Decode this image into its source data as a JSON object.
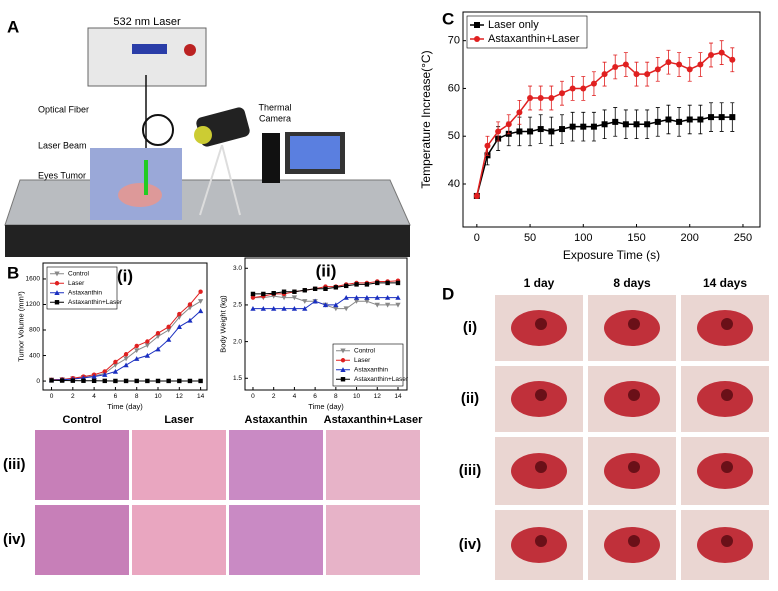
{
  "labels": {
    "panel_a": "A",
    "panel_b": "B",
    "panel_c": "C",
    "panel_d": "D",
    "laser_device": "532 nm Laser",
    "optical_fiber": "Optical Fiber",
    "laser_beam": "Laser Beam",
    "eyes_tumor": "Eyes Tumor",
    "thermal_camera": [
      "Thermal",
      "Camera"
    ]
  },
  "histology": {
    "columns": [
      "Control",
      "Laser",
      "Astaxanthin",
      "Astaxanthin+Laser"
    ],
    "rows": [
      "(iii)",
      "(iv)"
    ]
  },
  "photos": {
    "columns": [
      "1 day",
      "8 days",
      "14 days"
    ],
    "rows": [
      "(i)",
      "(ii)",
      "(iii)",
      "(iv)"
    ]
  },
  "chart_data": [
    {
      "type": "line",
      "xlabel": "Exposure Time (s)",
      "ylabel": "Temperature Increase(°C)",
      "legend": "upper left",
      "xlim": [
        -13,
        266
      ],
      "xticks": [
        0,
        50,
        100,
        150,
        200,
        250
      ],
      "ylim": [
        31,
        76
      ],
      "yticks": [
        40,
        50,
        60,
        70
      ],
      "x": [
        0,
        10,
        20,
        30,
        40,
        50,
        60,
        70,
        80,
        90,
        100,
        110,
        120,
        130,
        140,
        150,
        160,
        170,
        180,
        190,
        200,
        210,
        220,
        230,
        240
      ],
      "series": [
        {
          "name": "Laser only",
          "color": "#000000",
          "marker": "square",
          "values": [
            37.5,
            46,
            49.5,
            50.5,
            51,
            51,
            51.5,
            51,
            51.5,
            52,
            52,
            52,
            52.5,
            53,
            52.5,
            52.5,
            52.5,
            53,
            53.5,
            53,
            53.5,
            53.5,
            54,
            54,
            54
          ],
          "errors": [
            0.5,
            2,
            2.5,
            2.5,
            3,
            3,
            3,
            3,
            3,
            3,
            3,
            3,
            3,
            3,
            3,
            3,
            3,
            3,
            3,
            3,
            3,
            3,
            3,
            3,
            3
          ]
        },
        {
          "name": "Astaxanthin+Laser",
          "color": "#e02020",
          "marker": "circle",
          "values": [
            37.5,
            48,
            51,
            52.5,
            55,
            58,
            58,
            58,
            59,
            60,
            60,
            61,
            63,
            64.5,
            65,
            63,
            63,
            64,
            65.5,
            65,
            64,
            65,
            67,
            67.5,
            66
          ],
          "errors": [
            0.5,
            2,
            2,
            2,
            2.5,
            2.5,
            2.5,
            2.5,
            2.5,
            2.5,
            2.5,
            2.5,
            2.5,
            2.5,
            2.5,
            2.5,
            2.5,
            2.5,
            2.5,
            2.5,
            2.5,
            2.5,
            2.5,
            2.5,
            2.5
          ]
        }
      ]
    },
    {
      "type": "line",
      "title": "(i)",
      "xlabel": "Time (day)",
      "ylabel": "Tumor Volume (mm³)",
      "legend": "upper left",
      "xlim": [
        -0.8,
        14.6
      ],
      "xticks": [
        0,
        2,
        4,
        6,
        8,
        10,
        12,
        14
      ],
      "ylim": [
        -140,
        1850
      ],
      "yticks": [
        0,
        400,
        800,
        1200,
        1600
      ],
      "x": [
        0,
        1,
        2,
        3,
        4,
        5,
        6,
        7,
        8,
        9,
        10,
        11,
        12,
        13,
        14
      ],
      "series": [
        {
          "name": "Control",
          "color": "#888888",
          "marker": "triangle_down",
          "values": [
            20,
            25,
            40,
            60,
            80,
            120,
            250,
            350,
            480,
            560,
            700,
            800,
            1000,
            1150,
            1250
          ]
        },
        {
          "name": "Laser",
          "color": "#e02020",
          "marker": "circle",
          "values": [
            20,
            25,
            45,
            70,
            100,
            150,
            300,
            420,
            550,
            620,
            750,
            850,
            1050,
            1200,
            1400
          ]
        },
        {
          "name": "Astaxanthin",
          "color": "#1a2fc0",
          "marker": "triangle",
          "values": [
            15,
            20,
            30,
            50,
            70,
            100,
            150,
            250,
            350,
            400,
            500,
            650,
            850,
            950,
            1100
          ]
        },
        {
          "name": "Astaxanthin+Laser",
          "color": "#000000",
          "marker": "square",
          "values": [
            10,
            8,
            6,
            5,
            4,
            3,
            2,
            2,
            2,
            2,
            2,
            2,
            2,
            2,
            2
          ]
        }
      ]
    },
    {
      "type": "line",
      "title": "(ii)",
      "xlabel": "Time (day)",
      "ylabel": "Body Weight (kg)",
      "legend": "lower right",
      "xlim": [
        -0.77,
        14.87
      ],
      "xticks": [
        0,
        2,
        4,
        6,
        8,
        10,
        12,
        14
      ],
      "ylim": [
        1.34,
        3.14
      ],
      "yticks": [
        {
          "value": 1.5,
          "label": "1.5"
        },
        {
          "value": 2,
          "label": "2.0"
        },
        {
          "value": 2.5,
          "label": "2.5"
        },
        {
          "value": 3,
          "label": "3.0"
        }
      ],
      "x": [
        0,
        1,
        2,
        3,
        4,
        5,
        6,
        7,
        8,
        9,
        10,
        11,
        12,
        13,
        14
      ],
      "series": [
        {
          "name": "Control",
          "color": "#888888",
          "marker": "triangle_down",
          "values": [
            2.6,
            2.6,
            2.62,
            2.6,
            2.6,
            2.55,
            2.55,
            2.5,
            2.45,
            2.45,
            2.55,
            2.55,
            2.5,
            2.5,
            2.5
          ]
        },
        {
          "name": "Laser",
          "color": "#e02020",
          "marker": "circle",
          "values": [
            2.6,
            2.62,
            2.65,
            2.65,
            2.68,
            2.7,
            2.72,
            2.75,
            2.75,
            2.78,
            2.8,
            2.8,
            2.82,
            2.82,
            2.83
          ]
        },
        {
          "name": "Astaxanthin",
          "color": "#1a2fc0",
          "marker": "triangle",
          "values": [
            2.45,
            2.45,
            2.45,
            2.45,
            2.45,
            2.45,
            2.55,
            2.5,
            2.5,
            2.6,
            2.6,
            2.6,
            2.6,
            2.6,
            2.6
          ]
        },
        {
          "name": "Astaxanthin+Laser",
          "color": "#000000",
          "marker": "square",
          "values": [
            2.65,
            2.65,
            2.66,
            2.68,
            2.68,
            2.7,
            2.72,
            2.72,
            2.74,
            2.76,
            2.78,
            2.78,
            2.8,
            2.8,
            2.8
          ]
        }
      ]
    }
  ]
}
